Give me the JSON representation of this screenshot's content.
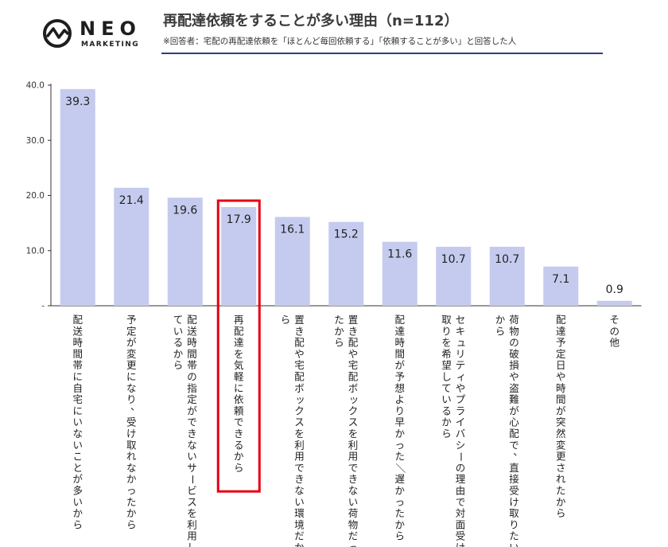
{
  "header": {
    "logo_name": "NEO",
    "logo_sub": "MARKETING",
    "title": "再配達依頼をすることが多い理由（n=112）",
    "subtitle": "※回答者：宅配の再配達依頼を「ほとんど毎回依頼する」「依頼することが多い」と回答した人"
  },
  "chart_data": {
    "type": "bar",
    "categories": [
      "配送時間帯に自宅にいないことが多いから",
      "予定が変更になり、受け取れなかったから",
      "配送時間帯の指定ができないサービスを利用しているから",
      "再配達を気軽に依頼できるから",
      "置き配や宅配ボックスを利用できない環境だから",
      "置き配や宅配ボックスを利用できない荷物だったから",
      "配達時間が予想より早かった／遅かったから",
      "セキュリティやプライバシーの理由で対面受け取りを希望しているから",
      "荷物の破損や盗難が心配で、直接受け取りたいから",
      "配達予定日や時間が突然変更されたから",
      "その他"
    ],
    "category_lines": [
      [
        "配送時間帯に自宅にいないことが多いから"
      ],
      [
        "予定が変更になり、受け取れなかったから"
      ],
      [
        "配送時間帯の指定ができないサービスを利用し",
        "ているから"
      ],
      [
        "再配達を気軽に依頼できるから"
      ],
      [
        "置き配や宅配ボックスを利用できない環境だか",
        "ら"
      ],
      [
        "置き配や宅配ボックスを利用できない荷物だっ",
        "たから"
      ],
      [
        "配達時間が予想より早かった／遅かったから"
      ],
      [
        "セキュリティやプライバシーの理由で対面受け",
        "取りを希望しているから"
      ],
      [
        "荷物の破損や盗難が心配で、直接受け取りたい",
        "から"
      ],
      [
        "配達予定日や時間が突然変更されたから"
      ],
      [
        "その他"
      ]
    ],
    "values": [
      39.3,
      21.4,
      19.6,
      17.9,
      16.1,
      15.2,
      11.6,
      10.7,
      10.7,
      7.1,
      0.9
    ],
    "value_labels": [
      "39.3",
      "21.4",
      "19.6",
      "17.9",
      "16.1",
      "15.2",
      "11.6",
      "10.7",
      "10.7",
      "7.1",
      "0.9"
    ],
    "y_ticks": [
      "-",
      "10.0",
      "20.0",
      "30.0",
      "40.0"
    ],
    "y_tick_values": [
      0,
      10,
      20,
      30,
      40
    ],
    "ylim": [
      0,
      40
    ],
    "bar_color": "#c5cbee",
    "axis_color": "#333333",
    "highlight_index": 3,
    "highlight_color": "#e60012",
    "grid": false,
    "legend": "none"
  }
}
